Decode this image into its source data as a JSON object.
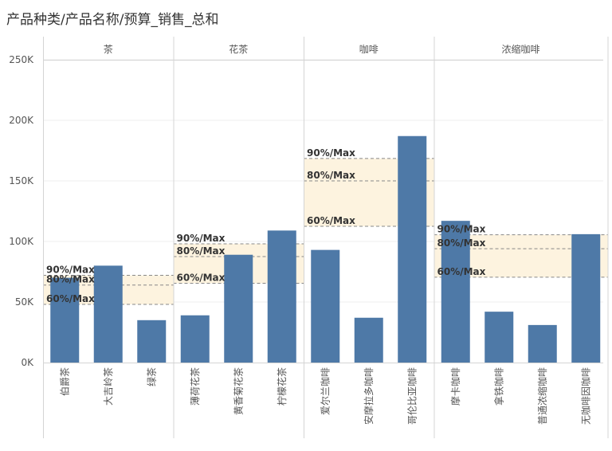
{
  "chart_data": {
    "type": "bar",
    "title": "产品种类/产品名称/预算_销售_总和",
    "ylim": [
      0,
      250000
    ],
    "yticks": [
      {
        "value": 0,
        "label": "0K"
      },
      {
        "value": 50000,
        "label": "50K"
      },
      {
        "value": 100000,
        "label": "100K"
      },
      {
        "value": 150000,
        "label": "150K"
      },
      {
        "value": 200000,
        "label": "200K"
      },
      {
        "value": 250000,
        "label": "250K"
      }
    ],
    "groups": [
      {
        "name": "茶",
        "bars": [
          {
            "label": "伯爵茶",
            "value": 70000
          },
          {
            "label": "大吉岭茶",
            "value": 80000
          },
          {
            "label": "绿茶",
            "value": 35000
          }
        ],
        "refs": [
          {
            "label": "90%/Max",
            "value": 72000
          },
          {
            "label": "80%/Max",
            "value": 64000
          },
          {
            "label": "60%/Max",
            "value": 48000
          }
        ]
      },
      {
        "name": "花茶",
        "bars": [
          {
            "label": "薄荷花茶",
            "value": 39000
          },
          {
            "label": "黄香菊花茶",
            "value": 89000
          },
          {
            "label": "柠檬花茶",
            "value": 109000
          }
        ],
        "refs": [
          {
            "label": "90%/Max",
            "value": 98000
          },
          {
            "label": "80%/Max",
            "value": 87500
          },
          {
            "label": "60%/Max",
            "value": 65500
          }
        ]
      },
      {
        "name": "咖啡",
        "bars": [
          {
            "label": "爱尔兰咖啡",
            "value": 93000
          },
          {
            "label": "安摩拉多咖啡",
            "value": 37000
          },
          {
            "label": "哥伦比亚咖啡",
            "value": 187000
          }
        ],
        "refs": [
          {
            "label": "90%/Max",
            "value": 168500
          },
          {
            "label": "80%/Max",
            "value": 150000
          },
          {
            "label": "60%/Max",
            "value": 112500
          }
        ]
      },
      {
        "name": "浓缩咖啡",
        "bars": [
          {
            "label": "摩卡咖啡",
            "value": 117000
          },
          {
            "label": "拿铁咖啡",
            "value": 42000
          },
          {
            "label": "普通浓缩咖啡",
            "value": 31000
          },
          {
            "label": "无咖啡因咖啡",
            "value": 106000
          }
        ],
        "refs": [
          {
            "label": "90%/Max",
            "value": 105500
          },
          {
            "label": "80%/Max",
            "value": 94000
          },
          {
            "label": "60%/Max",
            "value": 70500
          }
        ]
      }
    ],
    "colors": {
      "bar": "#4e79a7",
      "band": "#fdf3df",
      "ref_line": "#888888",
      "grid": "#efefef",
      "divider": "#d4d4d4",
      "axis_text": "#555555",
      "header_text": "#555555",
      "ref_text": "#333333"
    }
  }
}
